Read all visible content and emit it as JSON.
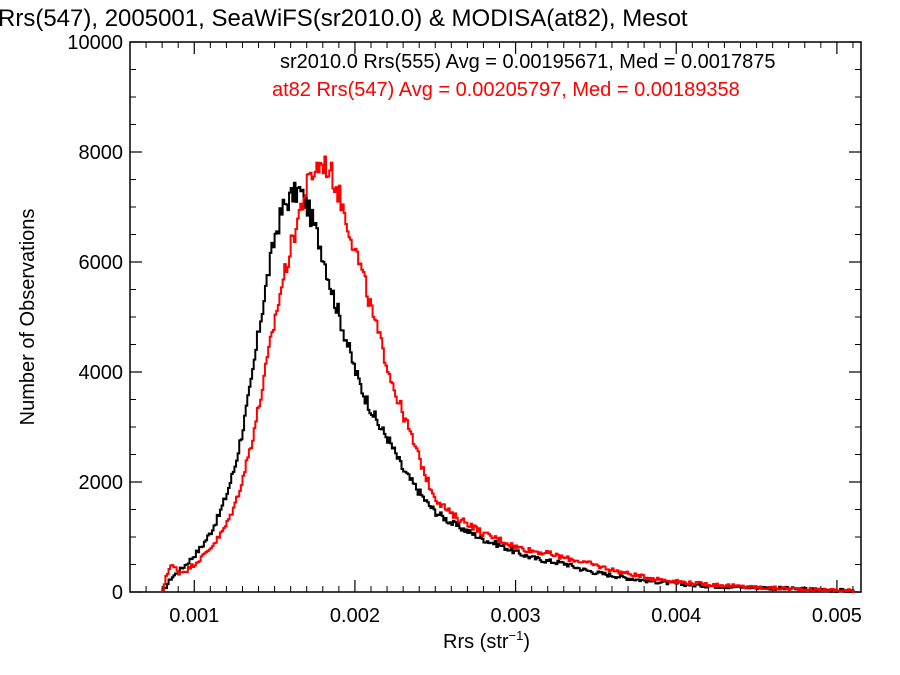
{
  "chart_data": {
    "type": "line",
    "title": "Rrs(547), 2005001, SeaWiFS(sr2010.0) & MODISA(at82), Mesot",
    "xlabel": "Rrs (str",
    "xlabel_sup": "−1",
    "xlabel_end": ")",
    "ylabel": "Number of Observations",
    "xlim": [
      0.0006,
      0.00515
    ],
    "ylim": [
      0,
      10000
    ],
    "xticks": [
      0.001,
      0.002,
      0.003,
      0.004,
      0.005
    ],
    "xtick_labels": [
      "0.001",
      "0.002",
      "0.003",
      "0.004",
      "0.005"
    ],
    "yticks": [
      0,
      2000,
      4000,
      6000,
      8000,
      10000
    ],
    "ytick_labels": [
      "0",
      "2000",
      "4000",
      "6000",
      "8000",
      "10000"
    ],
    "grid": false,
    "step": "histogram",
    "annotations": [
      {
        "text": "sr2010.0 Rrs(555) Avg = 0.00195671, Med = 0.0017875",
        "color": "#000000"
      },
      {
        "text": "at82 Rrs(547) Avg = 0.00205797, Med = 0.00189358",
        "color": "#ff0000"
      }
    ],
    "series": [
      {
        "color": "#000000",
        "x": [
          0.0008,
          0.00085,
          0.0009,
          0.00095,
          0.001,
          0.00105,
          0.0011,
          0.00115,
          0.0012,
          0.00125,
          0.0013,
          0.00135,
          0.0014,
          0.00145,
          0.0015,
          0.00155,
          0.0016,
          0.00165,
          0.0017,
          0.00175,
          0.0018,
          0.00185,
          0.0019,
          0.00195,
          0.002,
          0.00205,
          0.0021,
          0.00215,
          0.0022,
          0.00225,
          0.0023,
          0.00235,
          0.0024,
          0.00245,
          0.0025,
          0.0026,
          0.0027,
          0.0028,
          0.0029,
          0.003,
          0.0031,
          0.0032,
          0.0033,
          0.0034,
          0.0035,
          0.0036,
          0.0037,
          0.0038,
          0.0039,
          0.004,
          0.0041,
          0.0042,
          0.0043,
          0.0044,
          0.0045,
          0.0046,
          0.0047,
          0.0048,
          0.0049,
          0.005,
          0.0051
        ],
        "y": [
          0,
          250,
          380,
          520,
          680,
          860,
          1100,
          1400,
          1800,
          2300,
          3000,
          3800,
          4800,
          5700,
          6500,
          7000,
          7200,
          7300,
          7000,
          6600,
          6100,
          5500,
          5000,
          4500,
          4000,
          3600,
          3300,
          3000,
          2800,
          2500,
          2200,
          2000,
          1800,
          1600,
          1450,
          1250,
          1100,
          950,
          850,
          720,
          620,
          560,
          520,
          420,
          350,
          300,
          250,
          210,
          180,
          150,
          130,
          110,
          100,
          90,
          80,
          70,
          60,
          50,
          40,
          30,
          20
        ]
      },
      {
        "color": "#ff0000",
        "x": [
          0.0008,
          0.00082,
          0.00085,
          0.00088,
          0.0009,
          0.00095,
          0.001,
          0.00105,
          0.0011,
          0.00115,
          0.0012,
          0.00125,
          0.0013,
          0.00135,
          0.0014,
          0.00145,
          0.0015,
          0.00155,
          0.0016,
          0.00165,
          0.0017,
          0.00175,
          0.0018,
          0.00185,
          0.0019,
          0.00195,
          0.002,
          0.00205,
          0.0021,
          0.00215,
          0.0022,
          0.00225,
          0.0023,
          0.00235,
          0.0024,
          0.00245,
          0.0025,
          0.0026,
          0.0027,
          0.0028,
          0.0029,
          0.003,
          0.0031,
          0.0032,
          0.0033,
          0.0034,
          0.0035,
          0.0036,
          0.0037,
          0.0038,
          0.0039,
          0.004,
          0.0041,
          0.0042,
          0.0043,
          0.0044,
          0.0045,
          0.0046,
          0.0047,
          0.0048,
          0.0049,
          0.005,
          0.0051
        ],
        "y": [
          0,
          300,
          480,
          430,
          350,
          400,
          520,
          650,
          820,
          1000,
          1250,
          1600,
          2100,
          2700,
          3400,
          4200,
          5000,
          5700,
          6300,
          6900,
          7400,
          7700,
          7800,
          7600,
          7200,
          6700,
          6200,
          5700,
          5100,
          4600,
          4100,
          3600,
          3200,
          2800,
          2400,
          2000,
          1700,
          1400,
          1250,
          1050,
          950,
          820,
          750,
          700,
          620,
          560,
          480,
          400,
          330,
          270,
          230,
          190,
          160,
          140,
          120,
          100,
          80,
          70,
          60,
          50,
          40,
          30,
          20
        ]
      }
    ]
  }
}
